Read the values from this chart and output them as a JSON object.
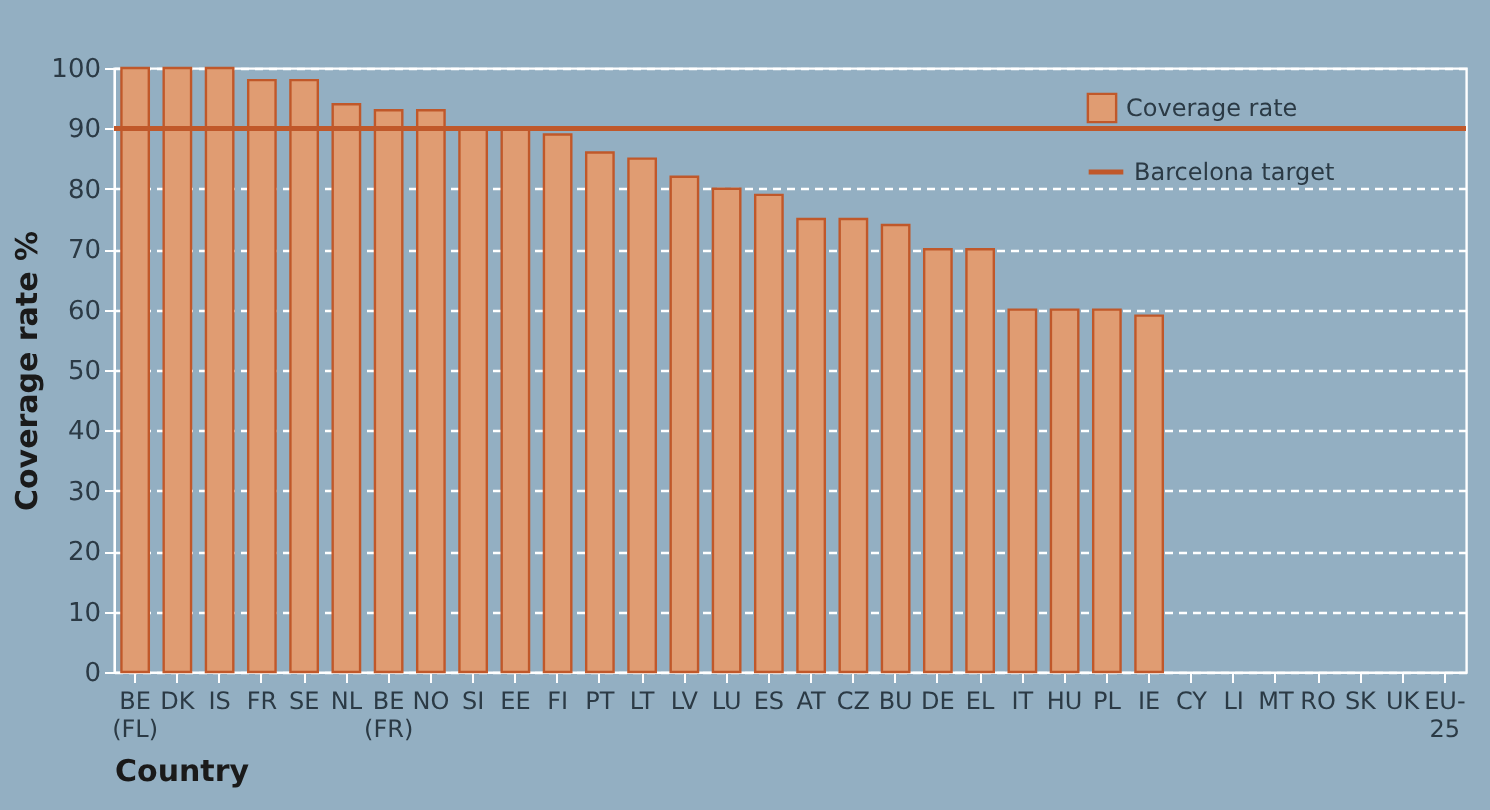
{
  "chart_data": {
    "type": "bar",
    "xlabel": "Country",
    "ylabel": "Coverage rate %",
    "categories": [
      "BE (FL)",
      "DK",
      "IS",
      "FR",
      "SE",
      "NL",
      "BE (FR)",
      "NO",
      "SI",
      "EE",
      "FI",
      "PT",
      "LT",
      "LV",
      "LU",
      "ES",
      "AT",
      "CZ",
      "BU",
      "DE",
      "EL",
      "IT",
      "HU",
      "PL",
      "IE",
      "CY",
      "LI",
      "MT",
      "RO",
      "SK",
      "UK",
      "EU-25"
    ],
    "series": [
      {
        "name": "Coverage rate",
        "color": "#e09c72",
        "values": [
          100,
          100,
          100,
          98,
          98,
          94,
          93,
          93,
          90,
          90,
          89,
          86,
          85,
          82,
          80,
          79,
          75,
          75,
          74,
          70,
          70,
          60,
          60,
          60,
          59,
          null,
          null,
          null,
          null,
          null,
          null,
          null
        ]
      }
    ],
    "ylim": [
      0,
      100
    ],
    "yticks": [
      0,
      10,
      20,
      30,
      40,
      50,
      60,
      70,
      80,
      90,
      100
    ],
    "ref_lines": [
      {
        "axis": "y",
        "value": 90,
        "label": "Barcelona target",
        "color": "#c0582a"
      }
    ],
    "grid": "y",
    "legend": "top right"
  }
}
